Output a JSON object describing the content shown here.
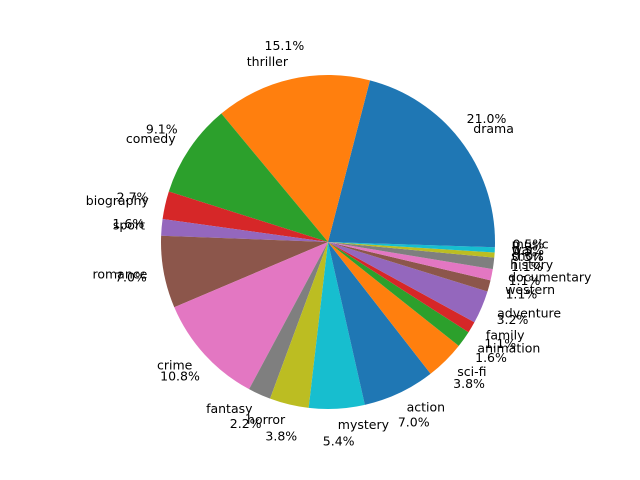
{
  "chart_data": {
    "type": "pie",
    "title": "",
    "start_angle_deg": 0,
    "direction": "counterclockwise",
    "slices": [
      {
        "label": "drama",
        "value": 21.0,
        "pct_label": "21.0%",
        "color": "#1f77b4"
      },
      {
        "label": "thriller",
        "value": 15.1,
        "pct_label": "15.1%",
        "color": "#ff7f0e"
      },
      {
        "label": "comedy",
        "value": 9.1,
        "pct_label": "9.1%",
        "color": "#2ca02c"
      },
      {
        "label": "biography",
        "value": 2.7,
        "pct_label": "2.7%",
        "color": "#d62728"
      },
      {
        "label": "sport",
        "value": 1.6,
        "pct_label": "1.6%",
        "color": "#9467bd"
      },
      {
        "label": "romance",
        "value": 7.0,
        "pct_label": "7.0%",
        "color": "#8c564b"
      },
      {
        "label": "crime",
        "value": 10.8,
        "pct_label": "10.8%",
        "color": "#e377c2"
      },
      {
        "label": "fantasy",
        "value": 2.2,
        "pct_label": "2.2%",
        "color": "#7f7f7f"
      },
      {
        "label": "horror",
        "value": 3.8,
        "pct_label": "3.8%",
        "color": "#bcbd22"
      },
      {
        "label": "mystery",
        "value": 5.4,
        "pct_label": "5.4%",
        "color": "#17becf"
      },
      {
        "label": "action",
        "value": 7.0,
        "pct_label": "7.0%",
        "color": "#1f77b4"
      },
      {
        "label": "sci-fi",
        "value": 3.8,
        "pct_label": "3.8%",
        "color": "#ff7f0e"
      },
      {
        "label": "animation",
        "value": 1.6,
        "pct_label": "1.6%",
        "color": "#2ca02c"
      },
      {
        "label": "family",
        "value": 1.1,
        "pct_label": "1.1%",
        "color": "#d62728"
      },
      {
        "label": "adventure",
        "value": 3.2,
        "pct_label": "3.2%",
        "color": "#9467bd"
      },
      {
        "label": "western",
        "value": 1.1,
        "pct_label": "1.1%",
        "color": "#8c564b"
      },
      {
        "label": "documentary",
        "value": 1.1,
        "pct_label": "1.1%",
        "color": "#e377c2"
      },
      {
        "label": "history",
        "value": 1.1,
        "pct_label": "1.1%",
        "color": "#7f7f7f"
      },
      {
        "label": "short",
        "value": 0.5,
        "pct_label": "0.5%",
        "color": "#bcbd22"
      },
      {
        "label": "war",
        "value": 0.5,
        "pct_label": "0.5%",
        "color": "#17becf"
      },
      {
        "label": "music",
        "value": 0.5,
        "pct_label": "0.5%",
        "color": "#1f77b4"
      }
    ]
  }
}
